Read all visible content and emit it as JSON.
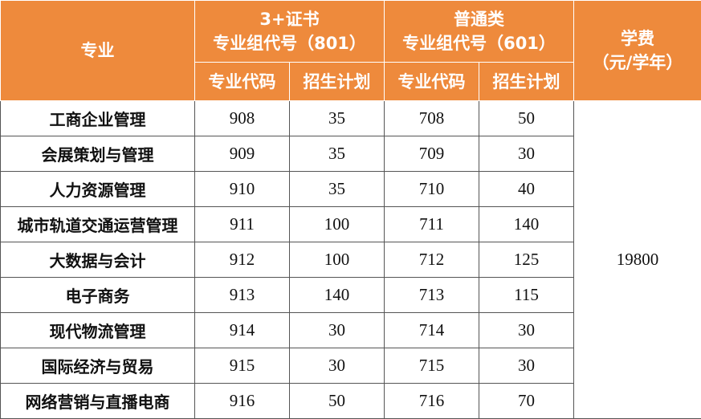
{
  "header": {
    "major": "专业",
    "group1": {
      "title": "3+证书",
      "subtitle": "专业组代号（801）"
    },
    "group2": {
      "title": "普通类",
      "subtitle": "专业组代号（601）"
    },
    "fee": {
      "line1": "学费",
      "line2": "（元/学年）"
    },
    "sub_columns": [
      "专业代码",
      "招生计划",
      "专业代码",
      "招生计划"
    ]
  },
  "table": {
    "rows": [
      [
        "工商企业管理",
        908,
        35,
        708,
        50
      ],
      [
        "会展策划与管理",
        909,
        35,
        709,
        30
      ],
      [
        "人力资源管理",
        910,
        35,
        710,
        40
      ],
      [
        "城市轨道交通运营管理",
        911,
        100,
        711,
        140
      ],
      [
        "大数据与会计",
        912,
        100,
        712,
        125
      ],
      [
        "电子商务",
        913,
        140,
        713,
        115
      ],
      [
        "现代物流管理",
        914,
        30,
        714,
        30
      ],
      [
        "国际经济与贸易",
        915,
        30,
        715,
        30
      ],
      [
        "网络营销与直播电商",
        916,
        50,
        716,
        70
      ]
    ],
    "fee_value": 19800
  }
}
